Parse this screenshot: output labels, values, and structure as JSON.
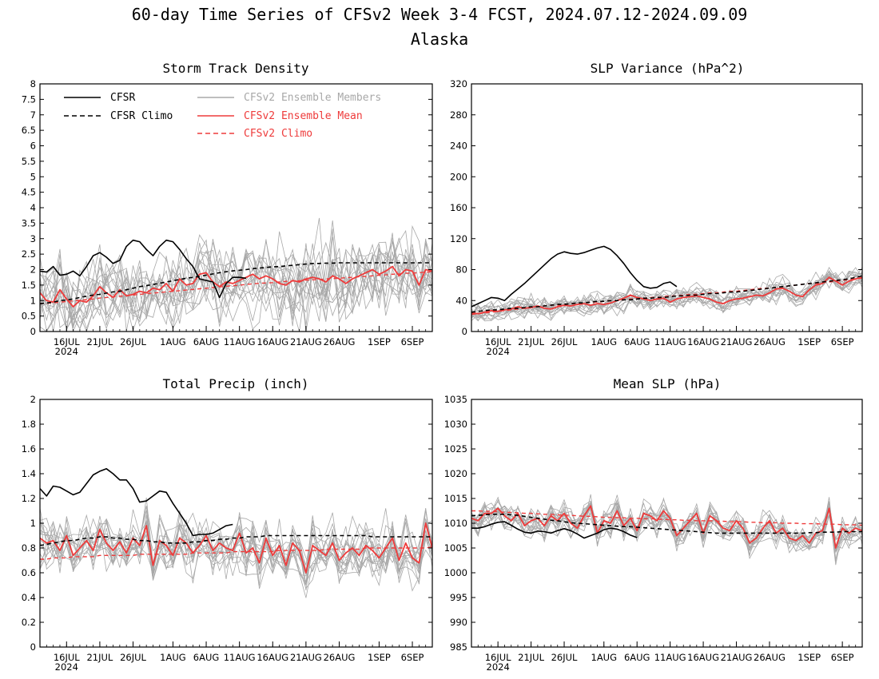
{
  "figure": {
    "title": "60-day Time Series of CFSv2 Week 3-4 FCST, 2024.07.12-2024.09.09",
    "subtitle": "Alaska"
  },
  "colors": {
    "cfsr": "#000000",
    "cfsr_climo": "#000000",
    "ensemble_members": "#a8a8a8",
    "ensemble_mean": "#ee3b3b",
    "cfsv2_climo": "#ee3b3b"
  },
  "legend": {
    "cfsr": "CFSR",
    "cfsr_climo": "CFSR Climo",
    "members": "CFSv2 Ensemble Members",
    "mean": "CFSv2 Ensemble Mean",
    "cfsv2_climo": "CFSv2 Climo"
  },
  "x_tick_labels": [
    "16JUL",
    "21JUL",
    "26JUL",
    "1AUG",
    "6AUG",
    "11AUG",
    "16AUG",
    "21AUG",
    "26AUG",
    "1SEP",
    "6SEP"
  ],
  "x_tick_days": [
    4,
    9,
    14,
    20,
    25,
    30,
    35,
    40,
    45,
    51,
    56
  ],
  "year_label": "2024",
  "chart_data": [
    {
      "type": "line",
      "title": "Storm Track Density",
      "x_start": "2024-07-12",
      "x_end": "2024-09-09",
      "ylim": [
        0,
        8
      ],
      "yticks": [
        "0",
        "0.5",
        "1",
        "1.5",
        "2",
        "2.5",
        "3",
        "3.5",
        "4",
        "4.5",
        "5",
        "5.5",
        "6",
        "6.5",
        "7",
        "7.5",
        "8"
      ],
      "legend_position": "top-left",
      "series": [
        {
          "name": "CFSR",
          "values": [
            1.95,
            1.92,
            2.1,
            1.82,
            1.85,
            1.95,
            1.8,
            2.1,
            2.45,
            2.55,
            2.4,
            2.2,
            2.3,
            2.75,
            2.95,
            2.9,
            2.65,
            2.45,
            2.75,
            2.95,
            2.9,
            2.65,
            2.35,
            2.1,
            1.7,
            1.65,
            1.6,
            1.1,
            1.55,
            1.75,
            1.75,
            1.72
          ]
        },
        {
          "name": "CFSR Climo",
          "values": [
            0.9,
            0.92,
            0.95,
            1.0,
            1.02,
            1.05,
            1.1,
            1.14,
            1.18,
            1.2,
            1.24,
            1.28,
            1.3,
            1.35,
            1.4,
            1.45,
            1.48,
            1.52,
            1.56,
            1.6,
            1.64,
            1.68,
            1.72,
            1.75,
            1.78,
            1.82,
            1.86,
            1.9,
            1.93,
            1.96,
            1.98,
            2.0,
            2.03,
            2.05,
            2.07,
            2.09,
            2.1,
            2.12,
            2.14,
            2.16,
            2.18,
            2.2,
            2.2,
            2.21,
            2.21,
            2.22,
            2.22,
            2.22,
            2.22,
            2.22,
            2.22,
            2.22,
            2.22,
            2.22,
            2.22,
            2.22,
            2.22,
            2.22,
            2.22,
            2.22
          ]
        },
        {
          "name": "CFSv2 Ensemble Mean",
          "values": [
            1.25,
            1.0,
            0.95,
            1.35,
            1.05,
            0.8,
            1.0,
            0.95,
            1.15,
            1.45,
            1.25,
            1.1,
            1.35,
            1.15,
            1.2,
            1.3,
            1.25,
            1.4,
            1.35,
            1.55,
            1.3,
            1.7,
            1.5,
            1.55,
            1.85,
            1.9,
            1.6,
            1.45,
            1.6,
            1.55,
            1.65,
            1.75,
            1.85,
            1.7,
            1.8,
            1.7,
            1.55,
            1.5,
            1.65,
            1.6,
            1.7,
            1.75,
            1.7,
            1.6,
            1.8,
            1.7,
            1.55,
            1.7,
            1.8,
            1.9,
            2.0,
            1.85,
            1.95,
            2.1,
            1.8,
            2.0,
            1.95,
            1.5,
            2.0,
            1.95
          ]
        },
        {
          "name": "CFSv2 Climo",
          "values": [
            0.9,
            0.91,
            0.93,
            0.95,
            0.97,
            0.99,
            1.01,
            1.03,
            1.05,
            1.08,
            1.1,
            1.12,
            1.14,
            1.16,
            1.18,
            1.2,
            1.22,
            1.24,
            1.26,
            1.28,
            1.3,
            1.32,
            1.34,
            1.36,
            1.38,
            1.4,
            1.42,
            1.44,
            1.46,
            1.48,
            1.5,
            1.52,
            1.54,
            1.56,
            1.57,
            1.58,
            1.6,
            1.62,
            1.63,
            1.64,
            1.66,
            1.67,
            1.68,
            1.7,
            1.71,
            1.72,
            1.74,
            1.75,
            1.77,
            1.78,
            1.8,
            1.82,
            1.83,
            1.85,
            1.86,
            1.88,
            1.89,
            1.9,
            1.92,
            1.93
          ]
        }
      ]
    },
    {
      "type": "line",
      "title": "SLP Variance (hPa^2)",
      "x_start": "2024-07-12",
      "x_end": "2024-09-09",
      "ylim": [
        0,
        320
      ],
      "yticks": [
        "0",
        "40",
        "80",
        "120",
        "160",
        "200",
        "240",
        "280",
        "320"
      ],
      "series": [
        {
          "name": "CFSR",
          "values": [
            32,
            36,
            40,
            44,
            43,
            40,
            48,
            55,
            62,
            70,
            78,
            86,
            94,
            100,
            103,
            101,
            100,
            102,
            105,
            108,
            110,
            106,
            98,
            88,
            76,
            66,
            58,
            56,
            57,
            62,
            64,
            58
          ]
        },
        {
          "name": "CFSR Climo",
          "values": [
            25,
            26,
            27,
            28,
            28,
            29,
            30,
            30,
            31,
            32,
            32,
            33,
            34,
            35,
            35,
            36,
            37,
            37,
            38,
            39,
            39,
            40,
            40,
            41,
            41,
            42,
            43,
            43,
            44,
            44,
            45,
            46,
            46,
            47,
            47,
            48,
            49,
            49,
            50,
            51,
            51,
            52,
            53,
            54,
            55,
            56,
            57,
            58,
            59,
            60,
            61,
            62,
            63,
            64,
            65,
            66,
            67,
            68,
            70,
            72
          ]
        },
        {
          "name": "CFSv2 Ensemble Mean",
          "values": [
            24,
            23,
            25,
            27,
            26,
            28,
            29,
            32,
            30,
            31,
            33,
            30,
            29,
            32,
            34,
            33,
            35,
            36,
            34,
            36,
            35,
            37,
            40,
            43,
            47,
            44,
            42,
            40,
            42,
            43,
            38,
            42,
            44,
            45,
            46,
            44,
            42,
            38,
            36,
            40,
            42,
            43,
            45,
            47,
            46,
            50,
            55,
            56,
            52,
            47,
            45,
            54,
            60,
            62,
            70,
            65,
            60,
            65,
            68,
            70
          ]
        },
        {
          "name": "CFSv2 Climo",
          "values": [
            22,
            23,
            24,
            25,
            26,
            27,
            28,
            29,
            30,
            31,
            32,
            33,
            34,
            34,
            35,
            36,
            36,
            37,
            38,
            38,
            39,
            40,
            40,
            41,
            42,
            42,
            43,
            44,
            44,
            45,
            46,
            46,
            47,
            48,
            48,
            49,
            50,
            50,
            51,
            52,
            52,
            53,
            54,
            55,
            56,
            56,
            57,
            58,
            59,
            60,
            61,
            62,
            62,
            63,
            64,
            65,
            66,
            67,
            68,
            69
          ]
        }
      ]
    },
    {
      "type": "line",
      "title": "Total Precip (inch)",
      "x_start": "2024-07-12",
      "x_end": "2024-09-09",
      "ylim": [
        0,
        2
      ],
      "yticks": [
        "0",
        "0.2",
        "0.4",
        "0.6",
        "0.8",
        "1",
        "1.2",
        "1.4",
        "1.6",
        "1.8",
        "2"
      ],
      "series": [
        {
          "name": "CFSR",
          "values": [
            1.28,
            1.22,
            1.3,
            1.29,
            1.26,
            1.23,
            1.25,
            1.32,
            1.39,
            1.42,
            1.44,
            1.4,
            1.35,
            1.35,
            1.28,
            1.17,
            1.18,
            1.22,
            1.26,
            1.25,
            1.16,
            1.08,
            1.0,
            0.9,
            0.91,
            0.91,
            0.92,
            0.95,
            0.98,
            0.99
          ]
        },
        {
          "name": "CFSR Climo",
          "values": [
            0.82,
            0.83,
            0.84,
            0.85,
            0.86,
            0.86,
            0.87,
            0.88,
            0.88,
            0.89,
            0.89,
            0.88,
            0.88,
            0.87,
            0.87,
            0.86,
            0.86,
            0.85,
            0.85,
            0.84,
            0.84,
            0.84,
            0.84,
            0.85,
            0.85,
            0.86,
            0.86,
            0.87,
            0.87,
            0.88,
            0.88,
            0.89,
            0.89,
            0.89,
            0.9,
            0.9,
            0.9,
            0.9,
            0.9,
            0.9,
            0.9,
            0.9,
            0.9,
            0.9,
            0.9,
            0.9,
            0.9,
            0.9,
            0.9,
            0.9,
            0.89,
            0.89,
            0.89,
            0.89,
            0.89,
            0.89,
            0.89,
            0.89,
            0.89,
            0.89
          ]
        },
        {
          "name": "CFSv2 Ensemble Mean",
          "values": [
            0.88,
            0.84,
            0.86,
            0.78,
            0.9,
            0.74,
            0.8,
            0.86,
            0.78,
            0.95,
            0.84,
            0.78,
            0.85,
            0.76,
            0.88,
            0.82,
            0.98,
            0.66,
            0.86,
            0.82,
            0.74,
            0.88,
            0.84,
            0.76,
            0.82,
            0.9,
            0.78,
            0.84,
            0.8,
            0.78,
            0.92,
            0.76,
            0.8,
            0.68,
            0.88,
            0.74,
            0.82,
            0.66,
            0.84,
            0.78,
            0.6,
            0.82,
            0.78,
            0.74,
            0.84,
            0.7,
            0.76,
            0.8,
            0.74,
            0.82,
            0.78,
            0.72,
            0.8,
            0.88,
            0.7,
            0.84,
            0.72,
            0.68,
            1.0,
            0.8
          ]
        },
        {
          "name": "CFSv2 Climo",
          "values": [
            0.71,
            0.71,
            0.72,
            0.72,
            0.72,
            0.73,
            0.73,
            0.73,
            0.73,
            0.74,
            0.74,
            0.74,
            0.74,
            0.74,
            0.74,
            0.75,
            0.75,
            0.75,
            0.75,
            0.75,
            0.75,
            0.75,
            0.75,
            0.76,
            0.76,
            0.76,
            0.76,
            0.76,
            0.76,
            0.77,
            0.77,
            0.77,
            0.77,
            0.77,
            0.77,
            0.77,
            0.78,
            0.78,
            0.78,
            0.78,
            0.78,
            0.78,
            0.78,
            0.79,
            0.79,
            0.79,
            0.79,
            0.79,
            0.79,
            0.8,
            0.8,
            0.8,
            0.8,
            0.8,
            0.8,
            0.8,
            0.8,
            0.8,
            0.8,
            0.81
          ]
        }
      ]
    },
    {
      "type": "line",
      "title": "Mean SLP (hPa)",
      "x_start": "2024-07-12",
      "x_end": "2024-09-09",
      "ylim": [
        985,
        1035
      ],
      "yticks": [
        "985",
        "990",
        "995",
        "1000",
        "1005",
        "1010",
        "1015",
        "1020",
        "1025",
        "1030",
        "1035"
      ],
      "series": [
        {
          "name": "CFSR",
          "values": [
            1009.0,
            1009.0,
            1009.3,
            1009.8,
            1010.2,
            1010.3,
            1009.6,
            1008.8,
            1008.2,
            1008.0,
            1008.4,
            1008.3,
            1008.0,
            1008.5,
            1008.9,
            1008.5,
            1007.8,
            1007.0,
            1007.5,
            1008.0,
            1008.7,
            1009.0,
            1008.8,
            1008.3,
            1007.6,
            1007.1
          ]
        },
        {
          "name": "CFSR Climo",
          "values": [
            1011.5,
            1011.6,
            1011.7,
            1011.8,
            1011.8,
            1011.8,
            1011.7,
            1011.6,
            1011.4,
            1011.2,
            1011.0,
            1010.8,
            1010.6,
            1010.5,
            1010.3,
            1010.1,
            1010.0,
            1009.9,
            1009.8,
            1009.7,
            1009.6,
            1009.5,
            1009.4,
            1009.3,
            1009.3,
            1009.2,
            1009.1,
            1009.0,
            1008.9,
            1008.8,
            1008.7,
            1008.6,
            1008.5,
            1008.4,
            1008.3,
            1008.2,
            1008.1,
            1008.0,
            1008.0,
            1008.0,
            1008.0,
            1008.0,
            1008.0,
            1008.0,
            1008.0,
            1008.0,
            1008.0,
            1008.0,
            1008.0,
            1008.0,
            1008.0,
            1008.1,
            1008.1,
            1008.2,
            1008.2,
            1008.2,
            1008.3,
            1008.3,
            1008.3,
            1008.3
          ]
        },
        {
          "name": "CFSv2 Ensemble Mean",
          "values": [
            1011.0,
            1010.5,
            1012.0,
            1012.0,
            1013.0,
            1011.5,
            1010.5,
            1012.0,
            1009.5,
            1010.5,
            1011.0,
            1009.5,
            1011.5,
            1010.5,
            1012.0,
            1010.0,
            1009.0,
            1011.5,
            1013.5,
            1008.0,
            1010.5,
            1010.0,
            1012.5,
            1009.5,
            1011.0,
            1008.5,
            1012.0,
            1011.5,
            1010.5,
            1012.5,
            1011.0,
            1007.5,
            1009.0,
            1010.5,
            1012.0,
            1008.0,
            1011.5,
            1010.5,
            1009.0,
            1008.5,
            1010.5,
            1009.0,
            1006.0,
            1007.0,
            1009.0,
            1010.5,
            1008.0,
            1009.0,
            1007.0,
            1006.5,
            1007.5,
            1006.0,
            1008.0,
            1008.5,
            1013.0,
            1005.0,
            1009.0,
            1008.0,
            1009.0,
            1008.5
          ]
        },
        {
          "name": "CFSv2 Climo",
          "values": [
            1012.5,
            1012.5,
            1012.4,
            1012.4,
            1012.3,
            1012.2,
            1012.2,
            1012.1,
            1012.0,
            1012.0,
            1011.9,
            1011.8,
            1011.8,
            1011.7,
            1011.6,
            1011.6,
            1011.5,
            1011.4,
            1011.4,
            1011.3,
            1011.2,
            1011.2,
            1011.1,
            1011.1,
            1011.0,
            1011.0,
            1010.9,
            1010.9,
            1010.8,
            1010.8,
            1010.7,
            1010.7,
            1010.6,
            1010.6,
            1010.5,
            1010.5,
            1010.5,
            1010.4,
            1010.4,
            1010.3,
            1010.3,
            1010.3,
            1010.2,
            1010.2,
            1010.1,
            1010.1,
            1010.1,
            1010.0,
            1010.0,
            1010.0,
            1009.9,
            1009.9,
            1009.9,
            1009.8,
            1009.8,
            1009.8,
            1009.7,
            1009.7,
            1009.7,
            1009.6
          ]
        }
      ]
    }
  ]
}
